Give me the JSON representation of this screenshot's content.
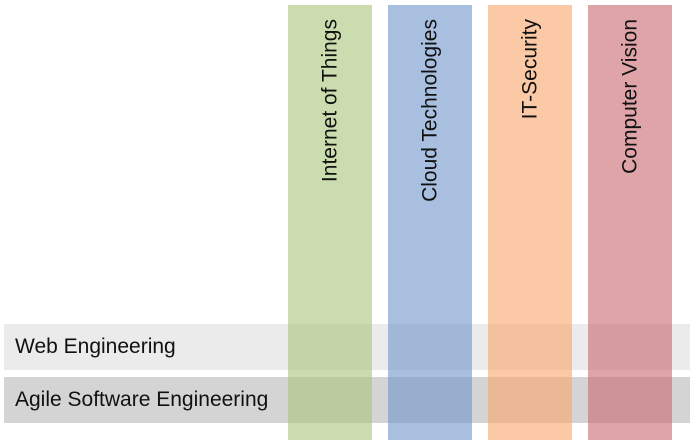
{
  "columns": [
    {
      "label": "Internet of Things",
      "color": "#a9c77a"
    },
    {
      "label": "Cloud Technologies",
      "color": "#6f95cc"
    },
    {
      "label": "IT-Security",
      "color": "#f8a56a"
    },
    {
      "label": "Computer Vision",
      "color": "#c8676c"
    }
  ],
  "rows": [
    {
      "label": "Web Engineering",
      "color": "#ebebeb"
    },
    {
      "label": "Agile Software Engineering",
      "color": "#d4d4d4"
    }
  ]
}
